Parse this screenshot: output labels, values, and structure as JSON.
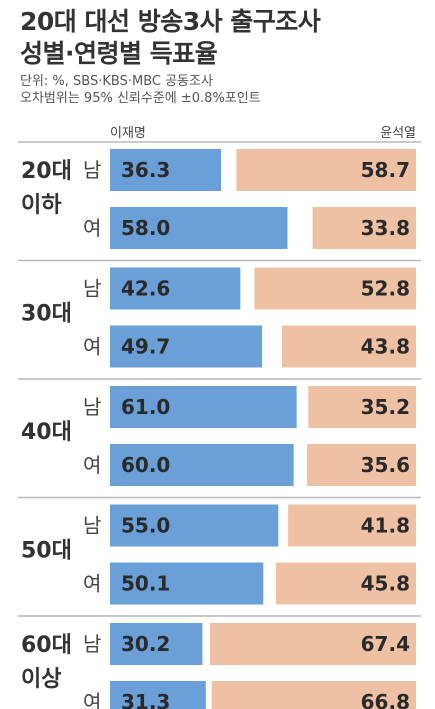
{
  "header": {
    "title_line1": "20대 대선 방송3사 출구조사",
    "title_line2": "성별·연령별 득표율",
    "note_line1": "단위: %, SBS·KBS·MBC 공동조사",
    "note_line2": "오차범위는 95% 신뢰수준에 ±0.8%포인트"
  },
  "colors": {
    "lee": "#6a9fd8",
    "yoon": "#eec1a5",
    "divider": "#b9b9b9"
  },
  "chart_data": {
    "type": "bar",
    "stacked": true,
    "orientation": "horizontal",
    "title": "20대 대선 방송3사 출구조사 성별·연령별 득표율",
    "candidates": [
      "이재명",
      "윤석열"
    ],
    "groups": [
      {
        "age": [
          "20대",
          "이하"
        ],
        "rows": [
          {
            "gender": "남",
            "lee": 36.3,
            "yoon": 58.7
          },
          {
            "gender": "여",
            "lee": 58.0,
            "yoon": 33.8
          }
        ]
      },
      {
        "age": [
          "30대"
        ],
        "rows": [
          {
            "gender": "남",
            "lee": 42.6,
            "yoon": 52.8
          },
          {
            "gender": "여",
            "lee": 49.7,
            "yoon": 43.8
          }
        ]
      },
      {
        "age": [
          "40대"
        ],
        "rows": [
          {
            "gender": "남",
            "lee": 61.0,
            "yoon": 35.2
          },
          {
            "gender": "여",
            "lee": 60.0,
            "yoon": 35.6
          }
        ]
      },
      {
        "age": [
          "50대"
        ],
        "rows": [
          {
            "gender": "남",
            "lee": 55.0,
            "yoon": 41.8
          },
          {
            "gender": "여",
            "lee": 50.1,
            "yoon": 45.8
          }
        ]
      },
      {
        "age": [
          "60대",
          "이상"
        ],
        "rows": [
          {
            "gender": "남",
            "lee": 30.2,
            "yoon": 67.4
          },
          {
            "gender": "여",
            "lee": 31.3,
            "yoon": 66.8
          }
        ]
      }
    ],
    "xlim": [
      0,
      100
    ],
    "grid": false,
    "legend": "top"
  }
}
